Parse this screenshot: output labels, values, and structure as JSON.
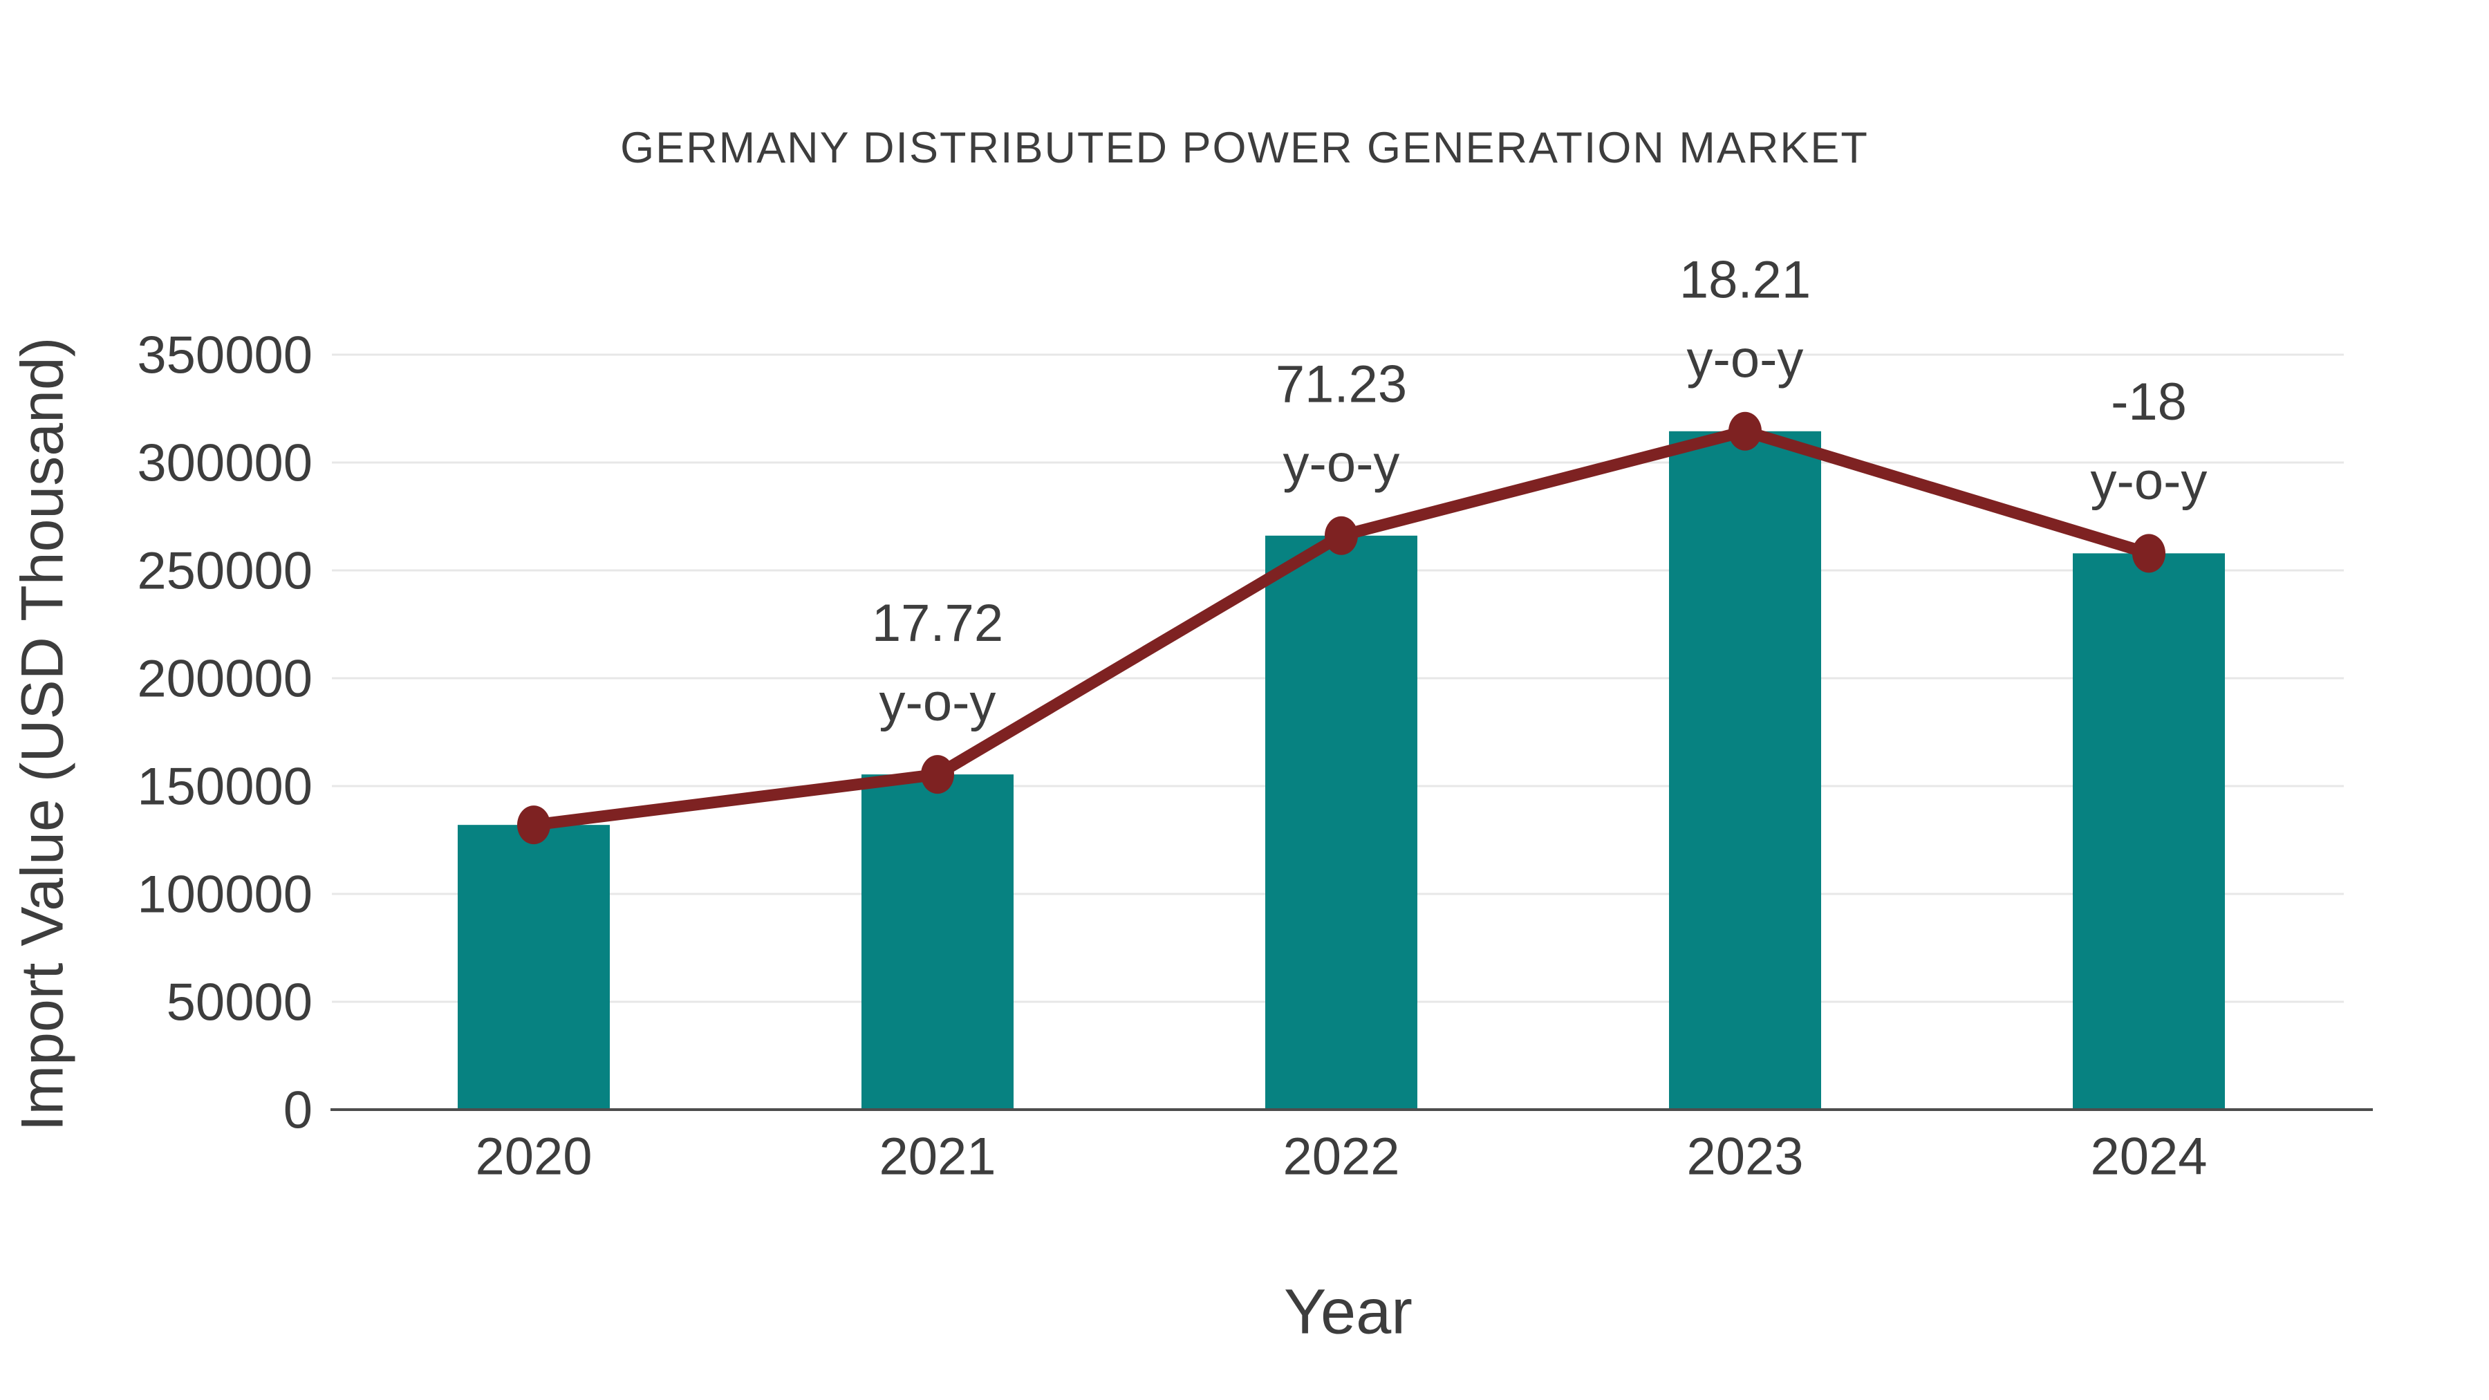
{
  "chart": {
    "title": "GERMANY DISTRIBUTED POWER GENERATION MARKET",
    "xlabel": "Year",
    "ylabel": "Import Value (USD Thousand)"
  },
  "chart_data": {
    "type": "bar",
    "title": "GERMANY DISTRIBUTED POWER GENERATION MARKET",
    "xlabel": "Year",
    "ylabel": "Import Value (USD Thousand)",
    "categories": [
      "2020",
      "2021",
      "2022",
      "2023",
      "2024"
    ],
    "series": [
      {
        "name": "Import Value bars",
        "type": "bar",
        "values": [
          132000,
          155400,
          266100,
          314500,
          257900
        ]
      },
      {
        "name": "Import Value trend",
        "type": "line",
        "values": [
          132000,
          155400,
          266100,
          314500,
          257900
        ]
      }
    ],
    "annotations": [
      {
        "category": "2021",
        "value_label": "17.72",
        "unit_label": "y-o-y"
      },
      {
        "category": "2022",
        "value_label": "71.23",
        "unit_label": "y-o-y"
      },
      {
        "category": "2023",
        "value_label": "18.21",
        "unit_label": "y-o-y"
      },
      {
        "category": "2024",
        "value_label": "-18",
        "unit_label": "y-o-y"
      }
    ],
    "ylim": [
      0,
      350000
    ],
    "yticks": [
      0,
      50000,
      100000,
      150000,
      200000,
      250000,
      300000,
      350000
    ],
    "grid": true,
    "legend": "none",
    "colors": {
      "bar": "#078281",
      "line": "#7e2222",
      "marker": "#7e2222",
      "gridline": "#e7e7e7",
      "axis": "#4d4d4d",
      "text": "#3d3d3d"
    }
  }
}
